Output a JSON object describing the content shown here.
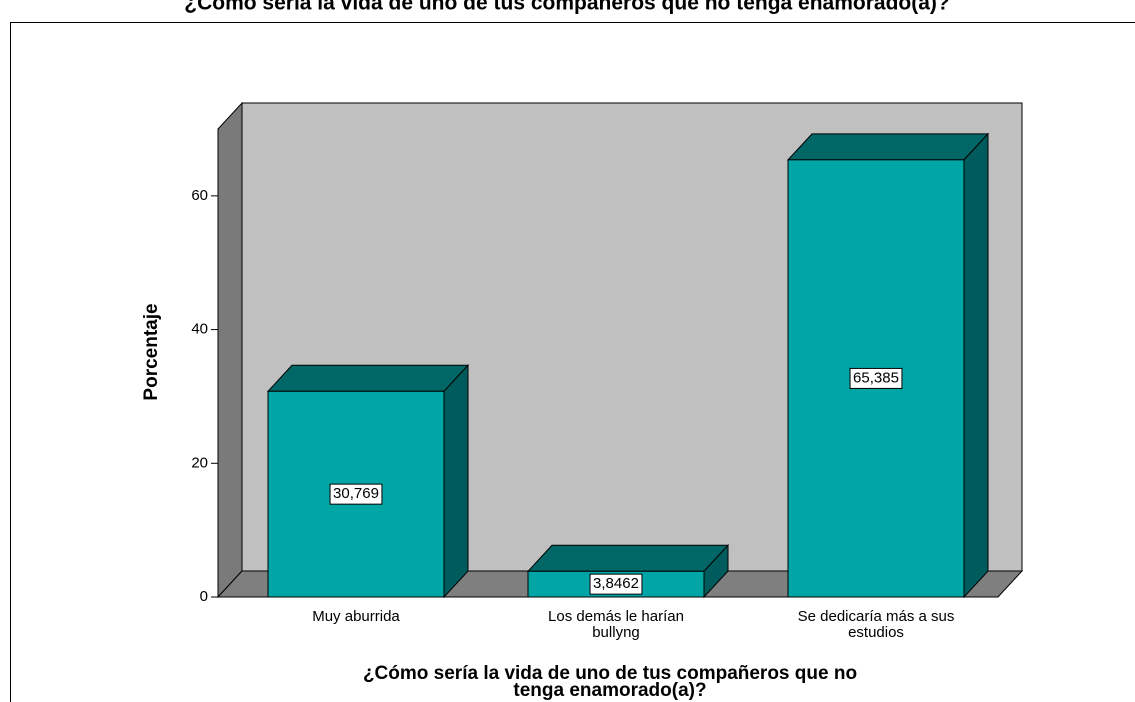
{
  "chart_data": {
    "type": "bar3d",
    "title": "¿Cómo sería la vida de uno de tus compañeros que no tenga enamorado(a)?",
    "x_label": "¿Cómo  sería la vida de uno de tus compañeros que no tenga enamorado(a)?",
    "y_label": "Porcentaje",
    "categories": [
      "Muy aburrida",
      "Los demás le harían bullyng",
      "Se dedicaría más a sus estudios"
    ],
    "values": [
      30.769,
      3.8462,
      65.385
    ],
    "value_labels": [
      "30,769",
      "3,8462",
      "65,385"
    ],
    "color": "#00a6a6",
    "ylim": [
      0,
      70
    ],
    "yticks": [
      0,
      20,
      40,
      60
    ]
  }
}
